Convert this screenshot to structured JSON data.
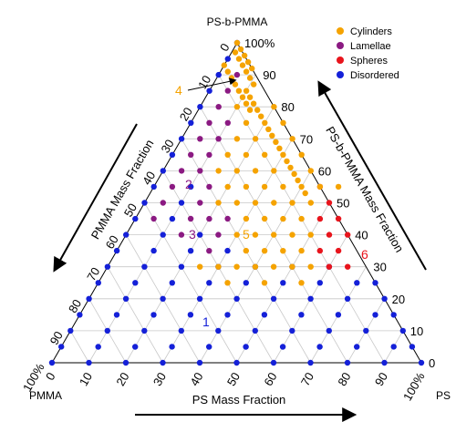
{
  "chart_data": {
    "type": "scatter",
    "subtype": "ternary",
    "vertices": {
      "top": "PS-b-PMMA",
      "left": "PMMA",
      "right": "PS"
    },
    "axis_titles": {
      "left_side": "PMMA Mass Fraction",
      "right_side": "PS-b-PMMA Mass Fraction",
      "bottom": "PS Mass Fraction"
    },
    "axis_ticks": {
      "left_side": [
        "0",
        "10",
        "20",
        "30",
        "40",
        "50",
        "60",
        "70",
        "80",
        "90",
        "100%"
      ],
      "right_side": [
        "100%",
        "90",
        "80",
        "70",
        "60",
        "50",
        "40",
        "30",
        "20",
        "10",
        "0"
      ],
      "bottom": [
        "0",
        "10",
        "20",
        "30",
        "40",
        "50",
        "60",
        "70",
        "80",
        "90",
        "100%"
      ]
    },
    "grid": true,
    "legend": {
      "placement": "top-right",
      "items": [
        {
          "label": "Cylinders",
          "color": "#f5a300"
        },
        {
          "label": "Lamellae",
          "color": "#8b1a82"
        },
        {
          "label": "Spheres",
          "color": "#e8141c"
        },
        {
          "label": "Disordered",
          "color": "#1420d8"
        }
      ]
    },
    "annotations": [
      {
        "text": "1",
        "color": "#1420d8"
      },
      {
        "text": "2",
        "color": "#8b1a82"
      },
      {
        "text": "3",
        "color": "#8b1a82"
      },
      {
        "text": "4",
        "color": "#f5a300"
      },
      {
        "text": "5",
        "color": "#f5a300"
      },
      {
        "text": "6",
        "color": "#e8141c"
      }
    ],
    "series": [
      {
        "name": "Disordered",
        "color": "#1420d8",
        "points_ps_bcp_pct": [
          [
            0,
            0
          ],
          [
            0,
            5
          ],
          [
            0,
            10
          ],
          [
            0,
            15
          ],
          [
            0,
            20
          ],
          [
            0,
            25
          ],
          [
            0,
            30
          ],
          [
            0,
            35
          ],
          [
            0,
            40
          ],
          [
            0,
            45
          ],
          [
            0,
            50
          ],
          [
            0,
            55
          ],
          [
            0,
            60
          ],
          [
            0,
            65
          ],
          [
            0,
            70
          ],
          [
            0,
            75
          ],
          [
            0,
            80
          ],
          [
            0,
            85
          ],
          [
            0,
            90
          ],
          [
            0,
            95
          ],
          [
            0,
            100
          ],
          [
            10,
            0
          ],
          [
            10,
            5
          ],
          [
            10,
            10
          ],
          [
            10,
            15
          ],
          [
            10,
            20
          ],
          [
            10,
            25
          ],
          [
            10,
            30
          ],
          [
            10,
            35
          ],
          [
            10,
            40
          ],
          [
            10,
            45
          ],
          [
            10,
            50
          ],
          [
            10,
            55
          ],
          [
            20,
            0
          ],
          [
            20,
            5
          ],
          [
            20,
            10
          ],
          [
            20,
            15
          ],
          [
            20,
            20
          ],
          [
            20,
            25
          ],
          [
            20,
            30
          ],
          [
            20,
            35
          ],
          [
            20,
            40
          ],
          [
            30,
            0
          ],
          [
            30,
            5
          ],
          [
            30,
            10
          ],
          [
            30,
            15
          ],
          [
            30,
            20
          ],
          [
            30,
            25
          ],
          [
            30,
            30
          ],
          [
            30,
            35
          ],
          [
            40,
            0
          ],
          [
            40,
            5
          ],
          [
            40,
            10
          ],
          [
            40,
            15
          ],
          [
            40,
            20
          ],
          [
            40,
            25
          ],
          [
            40,
            30
          ],
          [
            50,
            0
          ],
          [
            50,
            5
          ],
          [
            50,
            10
          ],
          [
            50,
            15
          ],
          [
            50,
            20
          ],
          [
            50,
            25
          ],
          [
            50,
            30
          ],
          [
            60,
            0
          ],
          [
            60,
            5
          ],
          [
            60,
            10
          ],
          [
            60,
            15
          ],
          [
            60,
            20
          ],
          [
            60,
            25
          ],
          [
            60,
            30
          ],
          [
            70,
            0
          ],
          [
            70,
            5
          ],
          [
            70,
            10
          ],
          [
            70,
            15
          ],
          [
            70,
            20
          ],
          [
            70,
            25
          ],
          [
            80,
            0
          ],
          [
            80,
            5
          ],
          [
            80,
            10
          ],
          [
            80,
            15
          ],
          [
            80,
            20
          ],
          [
            90,
            0
          ],
          [
            90,
            5
          ],
          [
            90,
            10
          ],
          [
            100,
            0
          ],
          [
            95,
            5
          ],
          [
            85,
            15
          ],
          [
            75,
            25
          ]
        ]
      },
      {
        "name": "Lamellae",
        "color": "#8b1a82",
        "points_ps_bcp_pct": [
          [
            5,
            90
          ],
          [
            5,
            85
          ],
          [
            5,
            80
          ],
          [
            5,
            75
          ],
          [
            5,
            70
          ],
          [
            5,
            65
          ],
          [
            5,
            60
          ],
          [
            5,
            55
          ],
          [
            5,
            50
          ],
          [
            5,
            45
          ],
          [
            10,
            75
          ],
          [
            10,
            70
          ],
          [
            10,
            65
          ],
          [
            10,
            60
          ],
          [
            15,
            55
          ],
          [
            15,
            50
          ],
          [
            15,
            45
          ],
          [
            15,
            40
          ],
          [
            20,
            45
          ],
          [
            25,
            45
          ],
          [
            25,
            40
          ],
          [
            25,
            35
          ]
        ]
      },
      {
        "name": "Spheres",
        "color": "#e8141c",
        "points_ps_bcp_pct": [
          [
            45,
            55
          ],
          [
            50,
            50
          ],
          [
            55,
            45
          ],
          [
            60,
            40
          ],
          [
            50,
            45
          ],
          [
            55,
            40
          ],
          [
            60,
            35
          ],
          [
            65,
            30
          ],
          [
            55,
            35
          ],
          [
            60,
            30
          ]
        ]
      },
      {
        "name": "Cylinders",
        "color": "#f5a300",
        "points_ps_bcp_pct": [
          [
            0,
            100
          ],
          [
            2,
            98
          ],
          [
            4,
            96
          ],
          [
            6,
            94
          ],
          [
            8,
            92
          ],
          [
            1,
            97
          ],
          [
            3,
            95
          ],
          [
            5,
            93
          ],
          [
            7,
            91
          ],
          [
            9,
            89
          ],
          [
            11,
            87
          ],
          [
            0,
            93
          ],
          [
            2,
            91
          ],
          [
            4,
            89
          ],
          [
            6,
            87
          ],
          [
            8,
            85
          ],
          [
            10,
            83
          ],
          [
            12,
            81
          ],
          [
            14,
            79
          ],
          [
            10,
            85
          ],
          [
            12,
            83
          ],
          [
            14,
            81
          ],
          [
            16,
            79
          ],
          [
            18,
            77
          ],
          [
            20,
            75
          ],
          [
            22,
            73
          ],
          [
            24,
            71
          ],
          [
            26,
            69
          ],
          [
            28,
            67
          ],
          [
            30,
            65
          ],
          [
            32,
            63
          ],
          [
            34,
            61
          ],
          [
            36,
            59
          ],
          [
            38,
            57
          ],
          [
            40,
            55
          ],
          [
            42,
            53
          ],
          [
            10,
            80
          ],
          [
            15,
            75
          ],
          [
            20,
            70
          ],
          [
            25,
            65
          ],
          [
            30,
            60
          ],
          [
            35,
            55
          ],
          [
            40,
            50
          ],
          [
            15,
            70
          ],
          [
            20,
            65
          ],
          [
            25,
            60
          ],
          [
            30,
            55
          ],
          [
            35,
            50
          ],
          [
            40,
            45
          ],
          [
            45,
            45
          ],
          [
            15,
            65
          ],
          [
            20,
            60
          ],
          [
            25,
            55
          ],
          [
            30,
            50
          ],
          [
            35,
            45
          ],
          [
            40,
            40
          ],
          [
            45,
            40
          ],
          [
            20,
            55
          ],
          [
            25,
            50
          ],
          [
            30,
            45
          ],
          [
            35,
            40
          ],
          [
            40,
            35
          ],
          [
            45,
            35
          ],
          [
            50,
            35
          ],
          [
            20,
            50
          ],
          [
            30,
            40
          ],
          [
            35,
            35
          ],
          [
            40,
            30
          ],
          [
            45,
            30
          ],
          [
            50,
            30
          ],
          [
            25,
            30
          ],
          [
            30,
            30
          ],
          [
            35,
            30
          ],
          [
            55,
            30
          ],
          [
            15,
            60
          ],
          [
            20,
            80
          ],
          [
            25,
            75
          ],
          [
            30,
            70
          ],
          [
            35,
            65
          ],
          [
            40,
            60
          ],
          [
            45,
            55
          ],
          [
            50,
            55
          ],
          [
            45,
            50
          ],
          [
            50,
            40
          ],
          [
            55,
            25
          ],
          [
            45,
            25
          ],
          [
            35,
            25
          ]
        ]
      }
    ]
  }
}
